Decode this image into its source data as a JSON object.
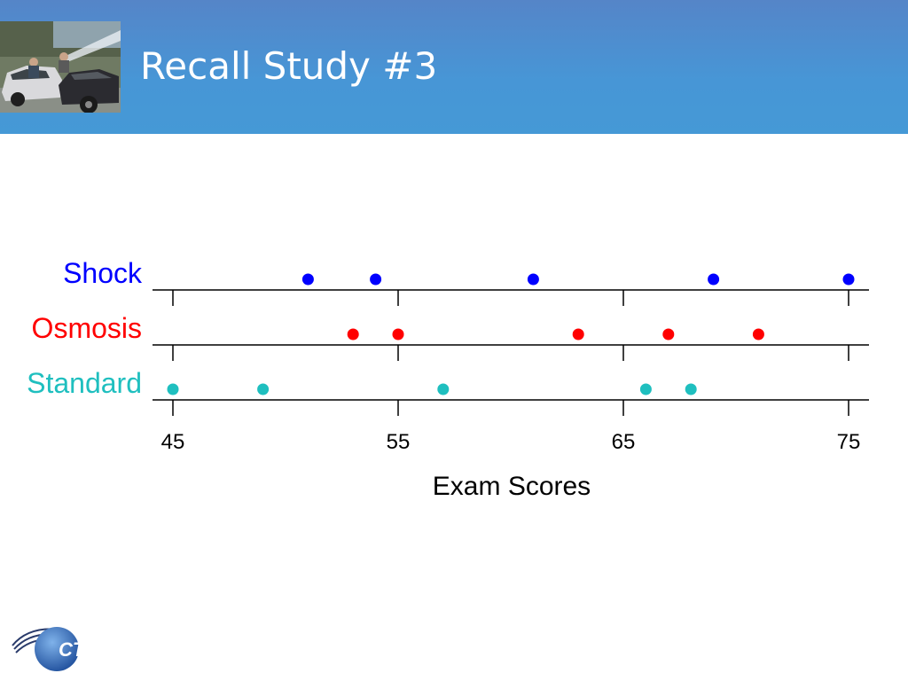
{
  "slide": {
    "title": "Recall Study #3"
  },
  "photo": {
    "icon": "car-crash-photo"
  },
  "logo": {
    "text": "CTRE"
  },
  "colors": {
    "header_top": "#5585c8",
    "header_bottom": "#4599d6",
    "Shock": "#0000ff",
    "Osmosis": "#ff0000",
    "Standard": "#1fbfbf"
  },
  "chart_data": {
    "type": "scatter",
    "subtype": "stacked dot plot",
    "xlabel": "Exam Scores",
    "xlim": [
      45,
      75
    ],
    "x_ticks": [
      45,
      55,
      65,
      75
    ],
    "grid": false,
    "legend": "none",
    "series": [
      {
        "name": "Shock",
        "values": [
          51,
          54,
          61,
          69,
          75
        ]
      },
      {
        "name": "Osmosis",
        "values": [
          53,
          55,
          63,
          67,
          71
        ]
      },
      {
        "name": "Standard",
        "values": [
          45,
          49,
          57,
          66,
          68
        ]
      }
    ]
  }
}
